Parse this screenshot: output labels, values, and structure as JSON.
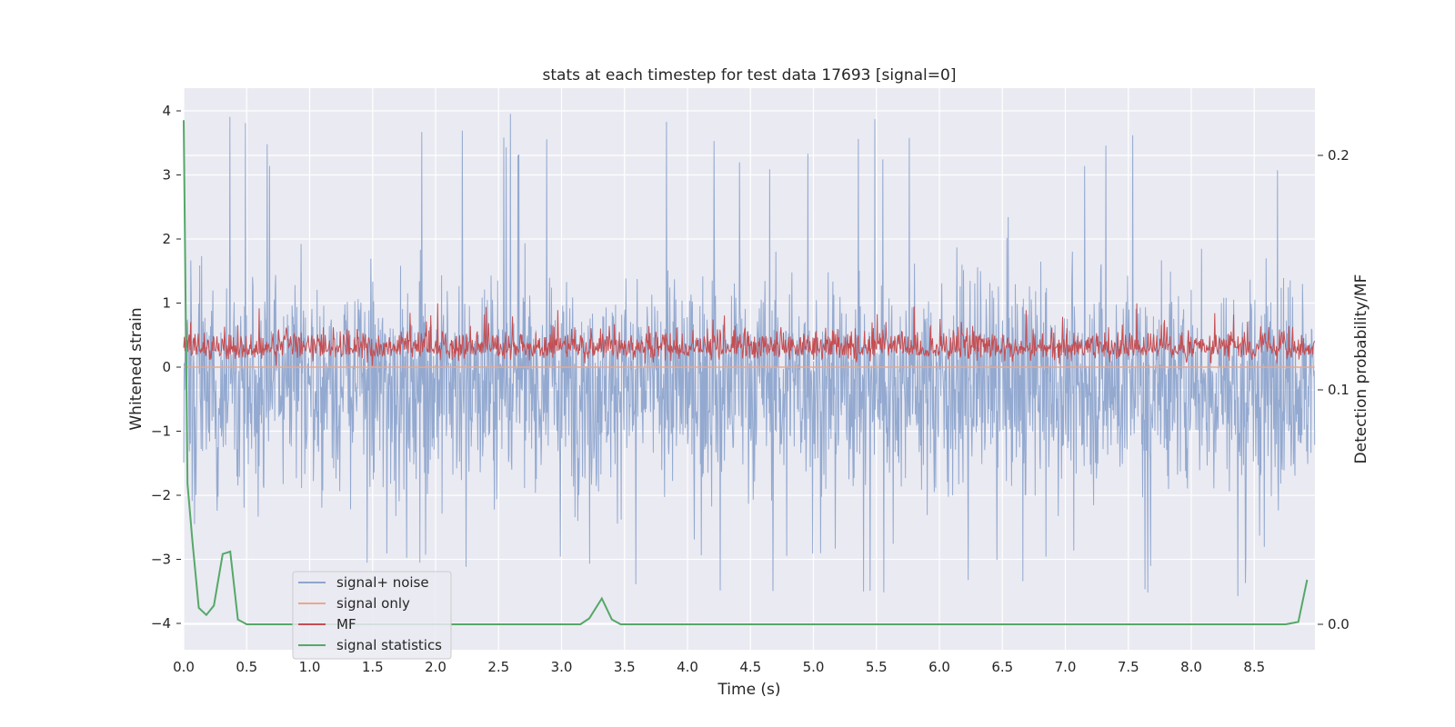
{
  "chart_data": {
    "type": "line",
    "title": "stats at each timestep for test data 17693 [signal=0]",
    "xlabel": "Time (s)",
    "ylabel": "Whitened strain",
    "y2label": "Detection probability/MF",
    "xlim": [
      0.0,
      9.0
    ],
    "ylim": [
      -4.4,
      4.35
    ],
    "y2lim": [
      -0.01,
      0.23
    ],
    "x_ticks": [
      "0.0",
      "0.5",
      "1.0",
      "1.5",
      "2.0",
      "2.5",
      "3.0",
      "3.5",
      "4.0",
      "4.5",
      "5.0",
      "5.5",
      "6.0",
      "6.5",
      "7.0",
      "7.5",
      "8.0",
      "8.5"
    ],
    "y_ticks": [
      "4",
      "3",
      "2",
      "1",
      "0",
      "−1",
      "−2",
      "−3",
      "−4"
    ],
    "y2_ticks": [
      "0.2",
      "0.1",
      "0.0"
    ],
    "grid": true,
    "legend_position": "lower-left",
    "colors": {
      "background": "#eaeaf2",
      "grid": "#ffffff",
      "signal_noise": "#8ea5cd",
      "signal_only": "#e8a88e",
      "mf": "#c44e52",
      "signal_statistics": "#55a868"
    },
    "series": [
      {
        "name": "signal+ noise",
        "axis": "left",
        "style": "dense-noise",
        "mean": -0.25,
        "min": -3.65,
        "max": 3.97,
        "x": [
          0.0,
          8.98
        ]
      },
      {
        "name": "signal only",
        "axis": "left",
        "style": "flat",
        "x": [
          0.0,
          8.98
        ],
        "y": [
          0.0,
          0.0
        ]
      },
      {
        "name": "MF",
        "axis": "left",
        "style": "dense-noise-positive",
        "min": 0.0,
        "max": 1.0,
        "x": [
          0.0,
          8.98
        ]
      },
      {
        "name": "signal statistics",
        "axis": "right",
        "x": [
          0.0,
          0.03,
          0.07,
          0.12,
          0.18,
          0.24,
          0.31,
          0.37,
          0.43,
          0.5,
          3.15,
          3.22,
          3.32,
          3.4,
          3.47,
          8.75,
          8.85,
          8.92
        ],
        "y": [
          0.215,
          0.06,
          0.035,
          0.007,
          0.004,
          0.008,
          0.03,
          0.031,
          0.002,
          0.0,
          0.0,
          0.0025,
          0.011,
          0.002,
          0.0,
          0.0,
          0.001,
          0.019
        ]
      }
    ]
  }
}
